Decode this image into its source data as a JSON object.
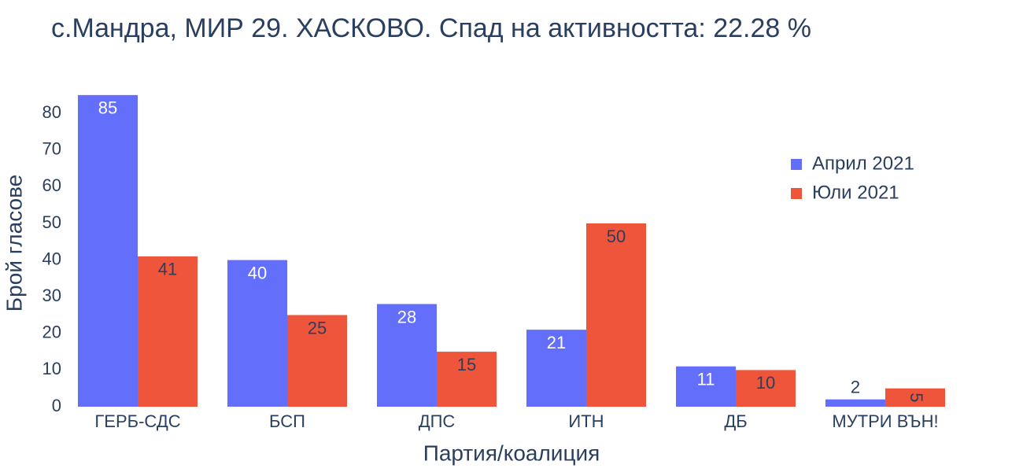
{
  "chart_data": {
    "type": "bar",
    "title": "с.Мандра, МИР 29. ХАСКОВО. Спад на активността: 22.28 %",
    "x_label": "Партия/коалиция",
    "y_label": "Брой гласове",
    "categories": [
      "ГЕРБ-СДС",
      "БСП",
      "ДПС",
      "ИТН",
      "ДБ",
      "МУТРИ ВЪН!"
    ],
    "series": [
      {
        "name": "Април 2021",
        "color": "#636efa",
        "label_color": "#ffffff",
        "values": [
          85,
          40,
          28,
          21,
          11,
          2
        ]
      },
      {
        "name": "Юли 2021",
        "color": "#ef553b",
        "label_color": "#2a3f5f",
        "values": [
          41,
          25,
          15,
          50,
          10,
          5
        ]
      }
    ],
    "ylim": [
      0,
      89.47
    ],
    "yticks": [
      0,
      10,
      20,
      30,
      40,
      50,
      60,
      70,
      80
    ],
    "grid": false,
    "legend": "top-right"
  }
}
